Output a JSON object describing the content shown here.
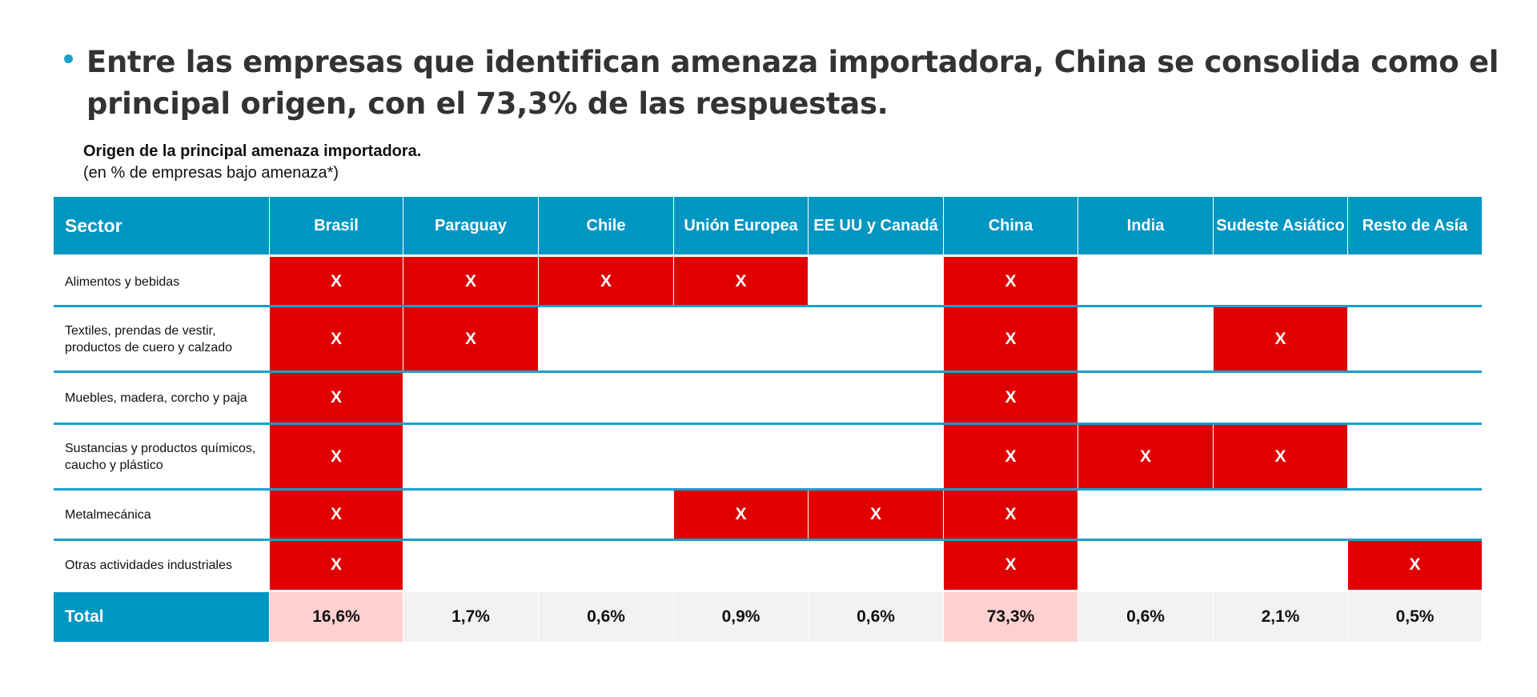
{
  "headline": "Entre las empresas que identifican amenaza importadora, China se consolida como el principal origen, con el 73,3% de las respuestas.",
  "table_title": "Origen de la principal amenaza importadora.",
  "table_note": "(en % de empresas bajo amenaza*)",
  "colors": {
    "header": "#0096c2",
    "mark": "#e00000",
    "highlight_total": "#ffd0d0",
    "total": "#f2f2f2"
  },
  "columns": [
    "Sector",
    "Brasil",
    "Paraguay",
    "Chile",
    "Unión Europea",
    "EE UU y Canadá",
    "China",
    "India",
    "Sudeste Asiático",
    "Resto de Asía"
  ],
  "mark_symbol": "X",
  "rows": [
    {
      "sector": "Alimentos y bebidas",
      "marks": [
        true,
        true,
        true,
        true,
        false,
        true,
        false,
        false,
        false
      ]
    },
    {
      "sector": "Textiles, prendas de vestir, productos de cuero y calzado",
      "marks": [
        true,
        true,
        false,
        false,
        false,
        true,
        false,
        true,
        false
      ]
    },
    {
      "sector": "Muebles, madera, corcho y paja",
      "marks": [
        true,
        false,
        false,
        false,
        false,
        true,
        false,
        false,
        false
      ]
    },
    {
      "sector": "Sustancias y productos químicos, caucho y plástico",
      "marks": [
        true,
        false,
        false,
        false,
        false,
        true,
        true,
        true,
        false
      ]
    },
    {
      "sector": "Metalmecánica",
      "marks": [
        true,
        false,
        false,
        true,
        true,
        true,
        false,
        false,
        false
      ]
    },
    {
      "sector": "Otras actividades industriales",
      "marks": [
        true,
        false,
        false,
        false,
        false,
        true,
        false,
        false,
        true
      ]
    }
  ],
  "total": {
    "label": "Total",
    "values": [
      "16,6%",
      "1,7%",
      "0,6%",
      "0,9%",
      "0,6%",
      "73,3%",
      "0,6%",
      "2,1%",
      "0,5%"
    ],
    "highlighted": [
      true,
      false,
      false,
      false,
      false,
      true,
      false,
      false,
      false
    ]
  }
}
